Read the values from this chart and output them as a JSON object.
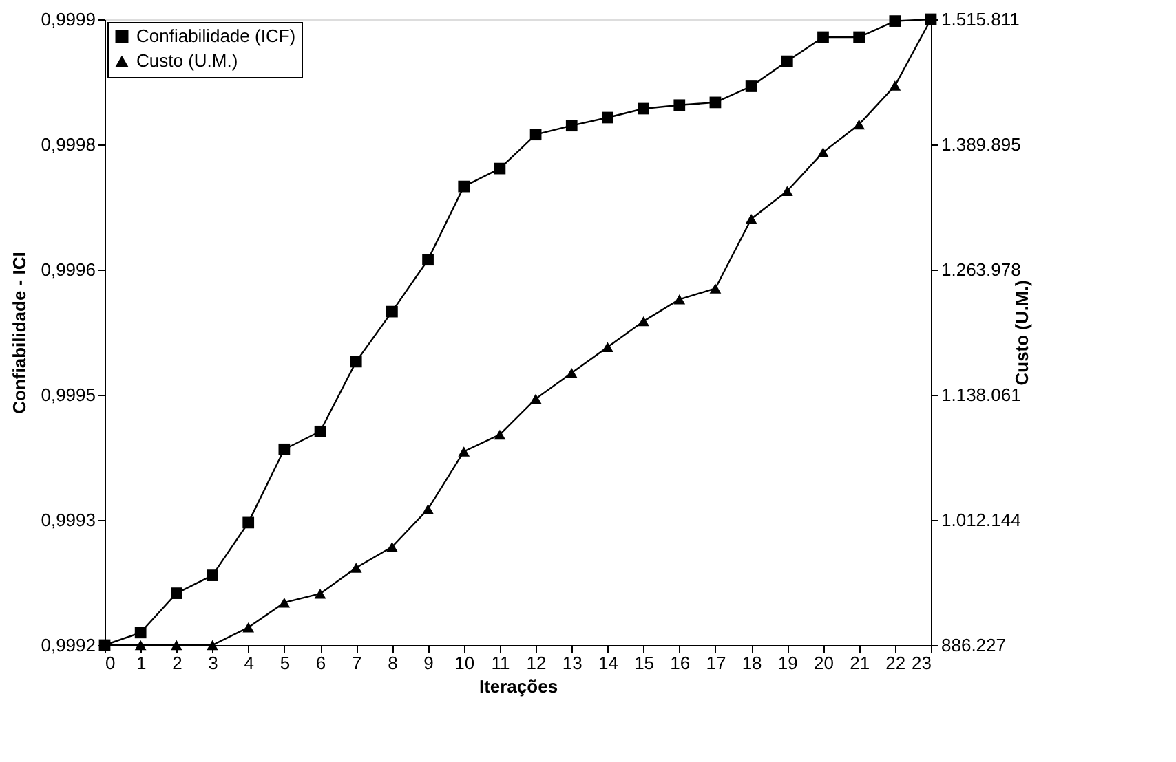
{
  "chart_data": {
    "type": "line",
    "xlabel": "Iterações",
    "ylabel": "Confiabilidade - ICI",
    "y2label": "Custo (U.M.)",
    "x": [
      0,
      1,
      2,
      3,
      4,
      5,
      6,
      7,
      8,
      9,
      10,
      11,
      12,
      13,
      14,
      15,
      16,
      17,
      18,
      19,
      20,
      21,
      22,
      23
    ],
    "xlim": [
      0,
      23
    ],
    "xticks": [
      0,
      1,
      2,
      3,
      4,
      5,
      6,
      7,
      8,
      9,
      10,
      11,
      12,
      13,
      14,
      15,
      16,
      17,
      18,
      19,
      20,
      21,
      22,
      23
    ],
    "ylim": [
      0.9992,
      0.9999
    ],
    "yticks": [
      {
        "value": 0.9992,
        "label": "0,9992"
      },
      {
        "value": 0.99934,
        "label": "0,9993"
      },
      {
        "value": 0.99948,
        "label": "0,9995"
      },
      {
        "value": 0.99962,
        "label": "0,9996"
      },
      {
        "value": 0.99976,
        "label": "0,9998"
      },
      {
        "value": 0.9999,
        "label": "0,9999"
      }
    ],
    "y2lim": [
      886227,
      1515811
    ],
    "y2ticks": [
      {
        "value": 886227,
        "label": "886.227"
      },
      {
        "value": 1012144,
        "label": "1.012.144"
      },
      {
        "value": 1138061,
        "label": "1.138.061"
      },
      {
        "value": 1263978,
        "label": "1.263.978"
      },
      {
        "value": 1389895,
        "label": "1.389.895"
      },
      {
        "value": 1515811,
        "label": "1.515.811"
      }
    ],
    "grid": false,
    "legend": "top left",
    "line_style": "solid",
    "series": [
      {
        "name": "Confiabilidade (ICF)",
        "color": "#000000",
        "marker": "square",
        "values": [
          0.9992,
          0.999214,
          0.999258,
          0.999278,
          0.999337,
          0.999419,
          0.999439,
          0.999517,
          0.999573,
          0.999631,
          0.999713,
          0.999733,
          0.999771,
          0.999781,
          0.99979,
          0.9998,
          0.999804,
          0.999807,
          0.999825,
          0.999853,
          0.99988,
          0.99988,
          0.999898,
          0.9999
        ]
      },
      {
        "name": "Custo (U.M.)",
        "color": "#000000",
        "marker": "triangle",
        "axis": "y2",
        "values": [
          886227,
          886227,
          886227,
          886227,
          904000,
          929000,
          938000,
          964000,
          985000,
          1023000,
          1081000,
          1098000,
          1134000,
          1160000,
          1186000,
          1212000,
          1234000,
          1245000,
          1315000,
          1343000,
          1382000,
          1410000,
          1449000,
          1515811
        ]
      }
    ]
  }
}
